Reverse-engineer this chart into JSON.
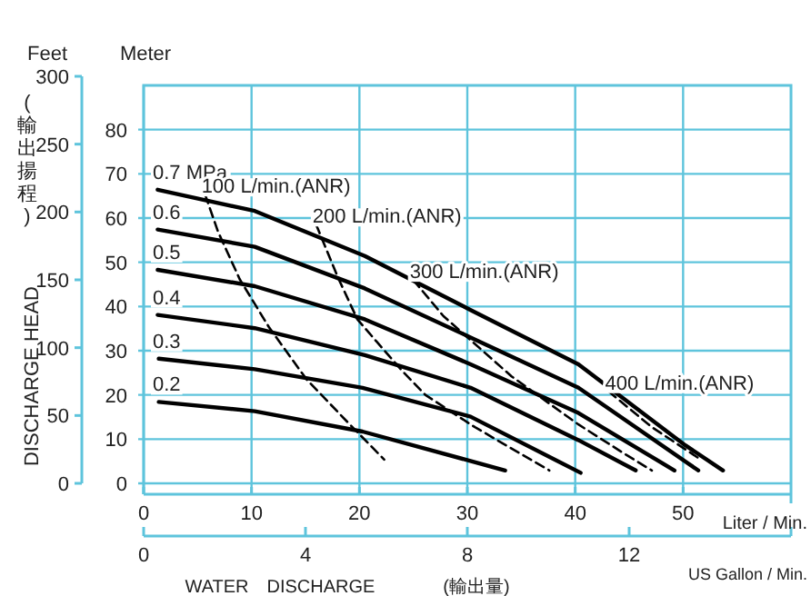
{
  "chart_data": {
    "type": "line",
    "xlabel": "Liter / Min.",
    "x2label": "US Gallon / Min.",
    "ylabel": "Meter",
    "y2label": "Feet",
    "annotations": [
      "DISCHARGE HEAD",
      "(輸出揚程)",
      "WATER　DISCHARGE",
      "(輸出量)"
    ],
    "xlim": [
      0,
      60
    ],
    "xticks": [
      0,
      10,
      20,
      30,
      40,
      50
    ],
    "x2lim": [
      0,
      16
    ],
    "x2ticks": [
      0,
      4,
      8,
      12
    ],
    "ylim": [
      0,
      90
    ],
    "yticks": [
      0,
      10,
      20,
      30,
      40,
      50,
      60,
      70,
      80
    ],
    "y2lim": [
      0,
      300
    ],
    "y2ticks": [
      0,
      50,
      100,
      150,
      200,
      250,
      300
    ],
    "grid": true,
    "series": [
      {
        "name": "0.7 MPa",
        "color": "#000000",
        "line_style": "solid",
        "x": [
          1.3,
          10.3,
          20.5,
          30.3,
          40.3,
          50.2,
          53.7
        ],
        "values": [
          66.4,
          61.6,
          51.4,
          39.2,
          26.9,
          8.6,
          2.9
        ]
      },
      {
        "name": "0.6",
        "color": "#000000",
        "line_style": "solid",
        "x": [
          1.3,
          10.3,
          20.5,
          30.3,
          40.3,
          51.4
        ],
        "values": [
          57.4,
          53.5,
          44.1,
          33,
          21.6,
          2.9
        ]
      },
      {
        "name": "0.5",
        "color": "#000000",
        "line_style": "solid",
        "x": [
          1.3,
          10.3,
          20.5,
          30.3,
          40.3,
          49.2
        ],
        "values": [
          48.3,
          44.6,
          37.1,
          26.9,
          15.9,
          2.9
        ]
      },
      {
        "name": "0.4",
        "color": "#000000",
        "line_style": "solid",
        "x": [
          1.3,
          10.3,
          20.5,
          30.3,
          40.3,
          45.6
        ],
        "values": [
          38.1,
          35.1,
          29,
          21.6,
          9.8,
          2.9
        ]
      },
      {
        "name": "0.3",
        "color": "#000000",
        "line_style": "solid",
        "x": [
          1.4,
          10.3,
          20.3,
          30.3,
          40.5
        ],
        "values": [
          28.2,
          25.8,
          21.6,
          15.1,
          2.4
        ]
      },
      {
        "name": "0.2",
        "color": "#000000",
        "line_style": "solid",
        "x": [
          1.4,
          10.3,
          20.3,
          33.5
        ],
        "values": [
          18.4,
          16.3,
          11.7,
          2.9
        ]
      },
      {
        "name": "100 L/min.(ANR)",
        "color": "#000000",
        "line_style": "dashed",
        "x": [
          5.7,
          6.9,
          8.9,
          11.6,
          15.1,
          19.0,
          22.3
        ],
        "values": [
          65.3,
          56.9,
          46.2,
          35.4,
          23.5,
          13.6,
          5.4
        ]
      },
      {
        "name": "200 L/min.(ANR)",
        "color": "#000000",
        "line_style": "dashed",
        "x": [
          16.0,
          18.0,
          19.8,
          21.6,
          23.9,
          26.1,
          30.7,
          37.6
        ],
        "values": [
          58.5,
          46.6,
          37.1,
          32,
          25.6,
          20,
          12.7,
          2.9
        ]
      },
      {
        "name": "300 L/min.(ANR)",
        "color": "#000000",
        "line_style": "dashed",
        "x": [
          25.0,
          27.8,
          34.1,
          40.3,
          44.7,
          47.1
        ],
        "values": [
          46,
          37.8,
          24.2,
          13.3,
          6.5,
          2.9
        ]
      },
      {
        "name": "400 L/min.(ANR)",
        "color": "#000000",
        "line_style": "dashed",
        "x": [
          43.1,
          47.1,
          51.5
        ],
        "values": [
          20.8,
          12.7,
          5.6
        ]
      }
    ]
  }
}
